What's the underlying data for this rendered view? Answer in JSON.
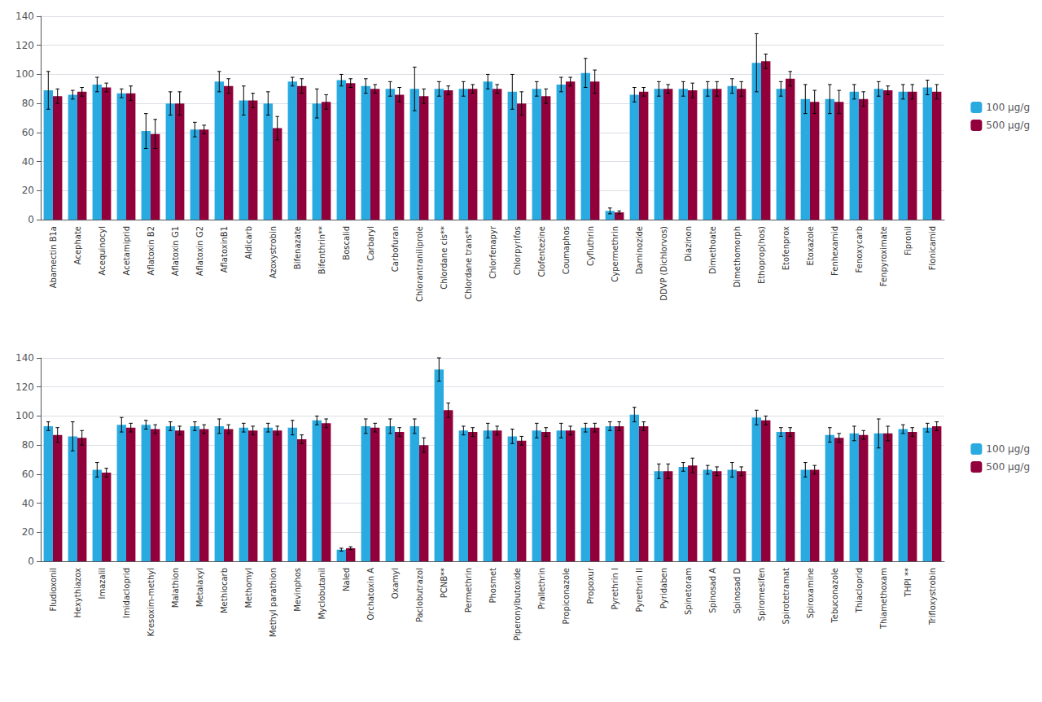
{
  "chart_data": [
    {
      "type": "bar",
      "categories": [
        "Abamectin B1a",
        "Acephate",
        "Acequinocyl",
        "Acetamiprid",
        "Aflatoxin B2",
        "Aflatoxin G1",
        "Aflatoxin G2",
        "AflatoxinB1",
        "Aldicarb",
        "Azoxystrobin",
        "Bifenazate",
        "Bifenthrin**",
        "Boscalid",
        "Carbaryl",
        "Carbofuran",
        "Chlorantraniliprole",
        "Chlordane cis**",
        "Chlordane trans**",
        "Chlorfenapyr",
        "Chlorpyrifos",
        "Clofentezine",
        "Coumaphos",
        "Cyfluthrin",
        "Cypermethrin",
        "Daminozide",
        "DDVP (Dichlorvos)",
        "Diazinon",
        "Dimethoate",
        "Dimethomorph",
        "Ethoprop(hos)",
        "Etofenprox",
        "Etoxazole",
        "Fenhexamid",
        "Fenoxycarb",
        "Fenpyroximate",
        "Fipronil",
        "Flonicamid"
      ],
      "series": [
        {
          "name": "100 μg/g",
          "color": "#29ABE2",
          "values": [
            89,
            86,
            93,
            87,
            61,
            80,
            62,
            95,
            82,
            80,
            95,
            80,
            96,
            92,
            90,
            90,
            90,
            90,
            95,
            88,
            90,
            93,
            101,
            6,
            86,
            90,
            90,
            90,
            92,
            108,
            90,
            83,
            83,
            88,
            90,
            88,
            91
          ],
          "errors": [
            13,
            3,
            5,
            3,
            12,
            8,
            5,
            7,
            10,
            8,
            3,
            10,
            4,
            5,
            5,
            15,
            5,
            5,
            5,
            12,
            5,
            5,
            10,
            2,
            5,
            5,
            5,
            5,
            5,
            20,
            5,
            10,
            10,
            5,
            5,
            5,
            5
          ]
        },
        {
          "name": "500 μg/g",
          "color": "#92003B",
          "values": [
            85,
            88,
            91,
            87,
            59,
            80,
            62,
            92,
            82,
            63,
            92,
            81,
            94,
            90,
            86,
            85,
            89,
            90,
            90,
            80,
            85,
            95,
            95,
            5,
            88,
            90,
            89,
            90,
            90,
            109,
            97,
            81,
            81,
            83,
            89,
            88,
            88
          ],
          "errors": [
            5,
            3,
            3,
            5,
            10,
            8,
            3,
            5,
            5,
            8,
            5,
            5,
            3,
            3,
            5,
            5,
            3,
            3,
            3,
            8,
            5,
            3,
            8,
            1,
            3,
            3,
            5,
            5,
            5,
            5,
            5,
            8,
            8,
            5,
            3,
            5,
            5
          ]
        }
      ],
      "ylim": [
        0,
        140
      ],
      "yticks": [
        0,
        20,
        40,
        60,
        80,
        100,
        120,
        140
      ],
      "grid": true,
      "legend": "right"
    },
    {
      "type": "bar",
      "categories": [
        "Fludioxonil",
        "Hexythiazox",
        "Imazalil",
        "Imidacloprid",
        "Kresoxim-methyl",
        "Malathion",
        "Metalaxyl",
        "Methiocarb",
        "Methomyl",
        "Methyl parathion",
        "Mevinphos",
        "Myclobutanil",
        "Naled",
        "Orchatoxin A",
        "Oxamyl",
        "Paclobutrazol",
        "PCNB**",
        "Permethrin",
        "Phosmet",
        "Piperonylbutoxide",
        "Prallethrin",
        "Propiconazole",
        "Propoxur",
        "Pyrethrin I",
        "Pyrethrin II",
        "Pyridaben",
        "Spinetoram",
        "Spinosad A",
        "Spinosad D",
        "Spiromesifen",
        "Spirotetramat",
        "Spiroxamine",
        "Tebuconazole",
        "Thiacloprid",
        "Thiamethoxam",
        "THPI **",
        "Trifloxystrobin"
      ],
      "series": [
        {
          "name": "100 μg/g",
          "color": "#29ABE2",
          "values": [
            93,
            86,
            63,
            94,
            94,
            93,
            93,
            93,
            92,
            92,
            92,
            97,
            8,
            93,
            93,
            93,
            132,
            90,
            90,
            86,
            90,
            90,
            92,
            93,
            101,
            62,
            65,
            63,
            63,
            99,
            89,
            63,
            87,
            88,
            88,
            91,
            92
          ],
          "errors": [
            3,
            10,
            5,
            5,
            3,
            3,
            3,
            5,
            3,
            3,
            5,
            3,
            1,
            5,
            5,
            5,
            8,
            3,
            5,
            5,
            5,
            5,
            3,
            3,
            5,
            5,
            3,
            3,
            5,
            5,
            3,
            5,
            5,
            5,
            10,
            3,
            3
          ]
        },
        {
          "name": "500 μg/g",
          "color": "#92003B",
          "values": [
            87,
            85,
            61,
            92,
            91,
            90,
            91,
            91,
            90,
            90,
            84,
            95,
            9,
            92,
            89,
            80,
            104,
            89,
            90,
            83,
            89,
            90,
            92,
            93,
            93,
            62,
            66,
            62,
            62,
            97,
            89,
            63,
            85,
            87,
            88,
            89,
            93
          ],
          "errors": [
            5,
            5,
            3,
            3,
            3,
            3,
            3,
            3,
            3,
            3,
            3,
            3,
            1,
            3,
            3,
            5,
            5,
            3,
            3,
            3,
            3,
            3,
            3,
            3,
            3,
            5,
            5,
            3,
            3,
            3,
            3,
            3,
            3,
            3,
            5,
            3,
            3
          ]
        }
      ],
      "ylim": [
        0,
        140
      ],
      "yticks": [
        0,
        20,
        40,
        60,
        80,
        100,
        120,
        140
      ],
      "grid": true,
      "legend": "right"
    }
  ]
}
